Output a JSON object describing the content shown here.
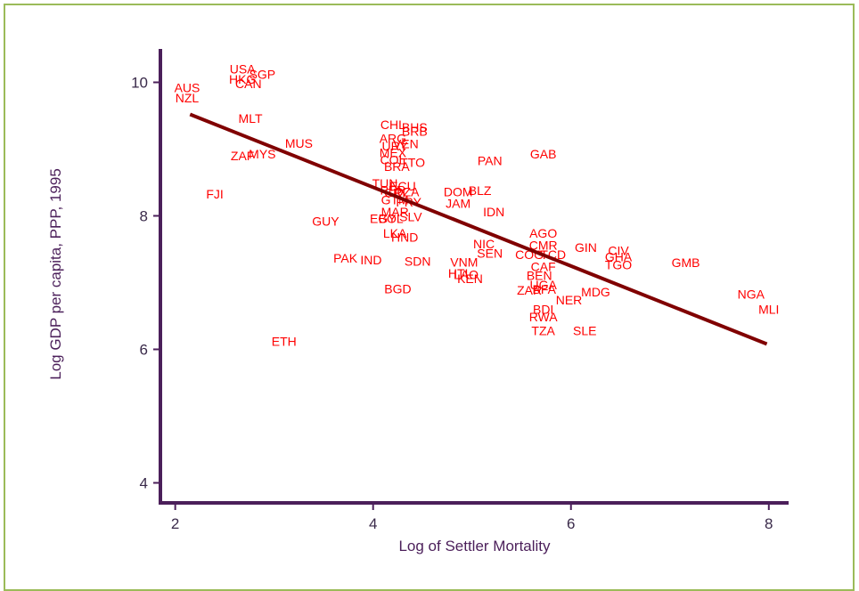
{
  "chart_data": {
    "type": "scatter",
    "xlabel": "Log of Settler Mortality",
    "ylabel": "Log GDP per capita, PPP, 1995",
    "xlim": [
      1.85,
      8.2
    ],
    "ylim": [
      3.7,
      10.5
    ],
    "x_ticks": [
      2,
      4,
      6,
      8
    ],
    "y_ticks": [
      4,
      6,
      8,
      10
    ],
    "grid": false,
    "colors": {
      "axis": "#4b1f5a",
      "labels": "#ff0000",
      "fit_line": "#800000",
      "frame": "#9bbb59"
    },
    "fit_line": {
      "x": [
        2.15,
        7.98
      ],
      "y": [
        9.52,
        6.08
      ]
    },
    "points": [
      {
        "label": "USA",
        "x": 2.68,
        "y": 10.2
      },
      {
        "label": "SGP",
        "x": 2.88,
        "y": 10.12
      },
      {
        "label": "HKG",
        "x": 2.68,
        "y": 10.05
      },
      {
        "label": "CAN",
        "x": 2.74,
        "y": 9.98
      },
      {
        "label": "AUS",
        "x": 2.12,
        "y": 9.92
      },
      {
        "label": "NZL",
        "x": 2.12,
        "y": 9.77
      },
      {
        "label": "MLT",
        "x": 2.76,
        "y": 9.46
      },
      {
        "label": "CHL",
        "x": 4.2,
        "y": 9.37
      },
      {
        "label": "BHS",
        "x": 4.42,
        "y": 9.33
      },
      {
        "label": "BRB",
        "x": 4.42,
        "y": 9.27
      },
      {
        "label": "ARG",
        "x": 4.2,
        "y": 9.16
      },
      {
        "label": "URY",
        "x": 4.22,
        "y": 9.05
      },
      {
        "label": "VEN",
        "x": 4.33,
        "y": 9.08
      },
      {
        "label": "MUS",
        "x": 3.25,
        "y": 9.09
      },
      {
        "label": "MEX",
        "x": 4.2,
        "y": 8.95
      },
      {
        "label": "ZAF",
        "x": 2.68,
        "y": 8.9
      },
      {
        "label": "MYS",
        "x": 2.88,
        "y": 8.93
      },
      {
        "label": "COL",
        "x": 4.2,
        "y": 8.84
      },
      {
        "label": "BRA",
        "x": 4.24,
        "y": 8.74
      },
      {
        "label": "TTO",
        "x": 4.4,
        "y": 8.8
      },
      {
        "label": "GAB",
        "x": 5.72,
        "y": 8.93
      },
      {
        "label": "PAN",
        "x": 5.18,
        "y": 8.83
      },
      {
        "label": "TUN",
        "x": 4.12,
        "y": 8.49
      },
      {
        "label": "ECU",
        "x": 4.3,
        "y": 8.45
      },
      {
        "label": "PER",
        "x": 4.2,
        "y": 8.39
      },
      {
        "label": "CRI",
        "x": 4.22,
        "y": 8.35
      },
      {
        "label": "DZA",
        "x": 4.34,
        "y": 8.36
      },
      {
        "label": "GTM",
        "x": 4.22,
        "y": 8.24
      },
      {
        "label": "PRY",
        "x": 4.36,
        "y": 8.21
      },
      {
        "label": "FJI",
        "x": 2.4,
        "y": 8.33
      },
      {
        "label": "DOM",
        "x": 4.86,
        "y": 8.36
      },
      {
        "label": "BLZ",
        "x": 5.08,
        "y": 8.38
      },
      {
        "label": "JAM",
        "x": 4.86,
        "y": 8.19
      },
      {
        "label": "IDN",
        "x": 5.22,
        "y": 8.06
      },
      {
        "label": "MAR",
        "x": 4.22,
        "y": 8.06
      },
      {
        "label": "SLV",
        "x": 4.38,
        "y": 7.99
      },
      {
        "label": "BOL",
        "x": 4.18,
        "y": 7.96
      },
      {
        "label": "EGY",
        "x": 4.1,
        "y": 7.96
      },
      {
        "label": "GUY",
        "x": 3.52,
        "y": 7.92
      },
      {
        "label": "NIC",
        "x": 5.12,
        "y": 7.58
      },
      {
        "label": "AGO",
        "x": 5.72,
        "y": 7.74
      },
      {
        "label": "LKA",
        "x": 4.22,
        "y": 7.74
      },
      {
        "label": "HND",
        "x": 4.32,
        "y": 7.68
      },
      {
        "label": "CMR",
        "x": 5.72,
        "y": 7.56
      },
      {
        "label": "GIN",
        "x": 6.15,
        "y": 7.53
      },
      {
        "label": "CIV",
        "x": 6.48,
        "y": 7.48
      },
      {
        "label": "SEN",
        "x": 5.18,
        "y": 7.44
      },
      {
        "label": "COG",
        "x": 5.58,
        "y": 7.42
      },
      {
        "label": "TCD",
        "x": 5.82,
        "y": 7.42
      },
      {
        "label": "GHA",
        "x": 6.48,
        "y": 7.39
      },
      {
        "label": "PAK",
        "x": 3.72,
        "y": 7.37
      },
      {
        "label": "IND",
        "x": 3.98,
        "y": 7.34
      },
      {
        "label": "SDN",
        "x": 4.45,
        "y": 7.32
      },
      {
        "label": "VNM",
        "x": 4.92,
        "y": 7.31
      },
      {
        "label": "GMB",
        "x": 7.16,
        "y": 7.3
      },
      {
        "label": "TGO",
        "x": 6.48,
        "y": 7.27
      },
      {
        "label": "CAF",
        "x": 5.72,
        "y": 7.24
      },
      {
        "label": "HTI",
        "x": 4.86,
        "y": 7.14
      },
      {
        "label": "LAO",
        "x": 4.94,
        "y": 7.12
      },
      {
        "label": "BEN",
        "x": 5.68,
        "y": 7.11
      },
      {
        "label": "KEN",
        "x": 4.98,
        "y": 7.06
      },
      {
        "label": "UGA",
        "x": 5.72,
        "y": 6.97
      },
      {
        "label": "ZAR",
        "x": 5.58,
        "y": 6.89
      },
      {
        "label": "BFA",
        "x": 5.73,
        "y": 6.9
      },
      {
        "label": "MDG",
        "x": 6.25,
        "y": 6.86
      },
      {
        "label": "BGD",
        "x": 4.25,
        "y": 6.91
      },
      {
        "label": "NGA",
        "x": 7.82,
        "y": 6.83
      },
      {
        "label": "NER",
        "x": 5.98,
        "y": 6.74
      },
      {
        "label": "MLI",
        "x": 8.0,
        "y": 6.6
      },
      {
        "label": "BDI",
        "x": 5.72,
        "y": 6.6
      },
      {
        "label": "RWA",
        "x": 5.72,
        "y": 6.49
      },
      {
        "label": "TZA",
        "x": 5.72,
        "y": 6.28
      },
      {
        "label": "SLE",
        "x": 6.14,
        "y": 6.28
      },
      {
        "label": "ETH",
        "x": 3.1,
        "y": 6.12
      }
    ]
  }
}
